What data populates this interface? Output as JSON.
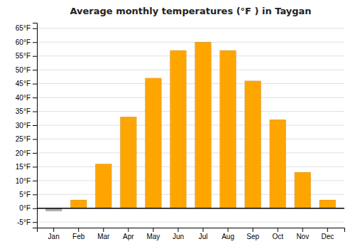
{
  "chart_data": {
    "type": "bar",
    "title": "Average monthly temperatures (°F ) in Taygan",
    "categories": [
      "Jan",
      "Feb",
      "Mar",
      "Apr",
      "May",
      "Jun",
      "Jul",
      "Aug",
      "Sep",
      "Oct",
      "Nov",
      "Dec"
    ],
    "values": [
      -1,
      3,
      16,
      33,
      47,
      57,
      60,
      57,
      46,
      32,
      13,
      3
    ],
    "colors": [
      "#aaaaaa",
      "#FFA500",
      "#FFA500",
      "#FFA500",
      "#FFA500",
      "#FFA500",
      "#FFA500",
      "#FFA500",
      "#FFA500",
      "#FFA500",
      "#FFA500",
      "#FFA500"
    ],
    "ylim": [
      -7,
      67
    ],
    "yticks": [
      {
        "value": -5,
        "label": "-5°F"
      },
      {
        "value": 0,
        "label": "0°F"
      },
      {
        "value": 5,
        "label": "5°F"
      },
      {
        "value": 10,
        "label": "10°F"
      },
      {
        "value": 15,
        "label": "15°F"
      },
      {
        "value": 20,
        "label": "20°F"
      },
      {
        "value": 25,
        "label": "25°F"
      },
      {
        "value": 30,
        "label": "30°F"
      },
      {
        "value": 35,
        "label": "35°F"
      },
      {
        "value": 40,
        "label": "40°F"
      },
      {
        "value": 45,
        "label": "45°F"
      },
      {
        "value": 50,
        "label": "50°F"
      },
      {
        "value": 55,
        "label": "55°F"
      },
      {
        "value": 60,
        "label": "60°F"
      },
      {
        "value": 65,
        "label": "65°F"
      }
    ],
    "grid": true
  }
}
